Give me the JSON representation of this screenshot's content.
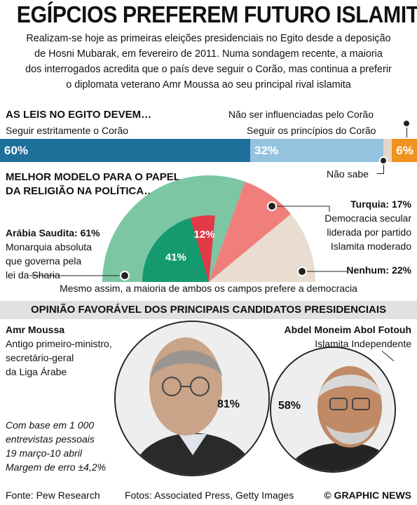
{
  "title": "EGÍPCIOS PREFEREM FUTURO ISLAMITA",
  "intro_lines": [
    "Realizam-se hoje as primeiras eleições presidenciais no Egito desde a deposição",
    "de Hosni Mubarak, em fevereiro de 2011. Numa sondagem recente, a maioria",
    "dos interrogados acredita que o país deve seguir o Corão, mas continua a preferir",
    "o diplomata veterano Amr Moussa ao seu principal rival islamita"
  ],
  "colors": {
    "strict": "#1f6f9b",
    "principles": "#94c3df",
    "dontknow": "#e3d6c6",
    "notinfluenced": "#f0921e",
    "saudi": "#7cc6a3",
    "saudi_dark": "#149a6e",
    "turkey": "#f07f7c",
    "turkey_dark": "#e23a46",
    "none": "#e8ddd0"
  },
  "chart_data": [
    {
      "type": "bar",
      "title": "AS LEIS NO EGITO DEVEM…",
      "stacked": true,
      "categories": [
        "Seguir estritamente o Corão",
        "Seguir os princípios do Corão",
        "Não sabe",
        "Não ser influenciadas pelo Corão"
      ],
      "values": [
        60,
        32,
        2,
        6
      ],
      "labels": [
        "60%",
        "32%",
        "",
        "6%"
      ]
    },
    {
      "type": "pie",
      "title": "MELHOR MODELO PARA O PAPEL DA RELIGIÃO NA POLÍTICA…",
      "slices": [
        {
          "name": "Arábia Saudita",
          "value": 61,
          "label": "41%",
          "inner_value": 41,
          "desc": "Monarquia absoluta que governa pela lei da Sharia"
        },
        {
          "name": "Turquia",
          "value": 17,
          "label": "12%",
          "inner_value": 12,
          "desc": "Democracia secular liderada por partido Islamita moderado"
        },
        {
          "name": "Nenhum",
          "value": 22
        }
      ]
    }
  ],
  "bar": {
    "heading": "AS LEIS NO EGITO DEVEM…",
    "strict_label": "Seguir estritamente o Corão",
    "principles_label": "Seguir os princípios do Corão",
    "notinfluenced_label": "Não ser influenciadas pelo Corão",
    "dontknow_label": "Não sabe"
  },
  "semi": {
    "heading_1": "MELHOR MODELO PARA O PAPEL",
    "heading_2": "DA RELIGIÃO NA POLÍTICA…",
    "saudi_title": "Arábia Saudita: 61%",
    "saudi_desc": [
      "Monarquia absoluta",
      "que governa pela",
      "lei da Sharia"
    ],
    "turkey_title": "Turquia: 17%",
    "turkey_desc": [
      "Democracia secular",
      "liderada por partido",
      "Islamita moderado"
    ],
    "none_title": "Nenhum: 22%",
    "note": "Mesmo assim, a maioria de ambos os campos prefere a democracia"
  },
  "candidates": {
    "heading": "OPINIÃO FAVORÁVEL DOS PRINCIPAIS CANDIDATOS PRESIDENCIAIS",
    "moussa": {
      "name": "Amr Moussa",
      "desc": [
        "Antigo primeiro-ministro,",
        "secretário-geral",
        "da Liga Árabe"
      ],
      "favor": 81,
      "favor_label": "81%"
    },
    "fotouh": {
      "name": "Abdel Moneim Abol Fotouh",
      "desc": [
        "Islamita Independente"
      ],
      "favor": 58,
      "favor_label": "58%"
    }
  },
  "methodology": [
    "Com base em 1 000",
    "entrevistas pessoais",
    "19 março-10 abril",
    "Margem de erro ±4,2%"
  ],
  "footer": {
    "source": "Fonte: Pew Research",
    "photos": "Fotos: Associated Press, Getty Images",
    "credit": "© GRAPHIC NEWS"
  }
}
